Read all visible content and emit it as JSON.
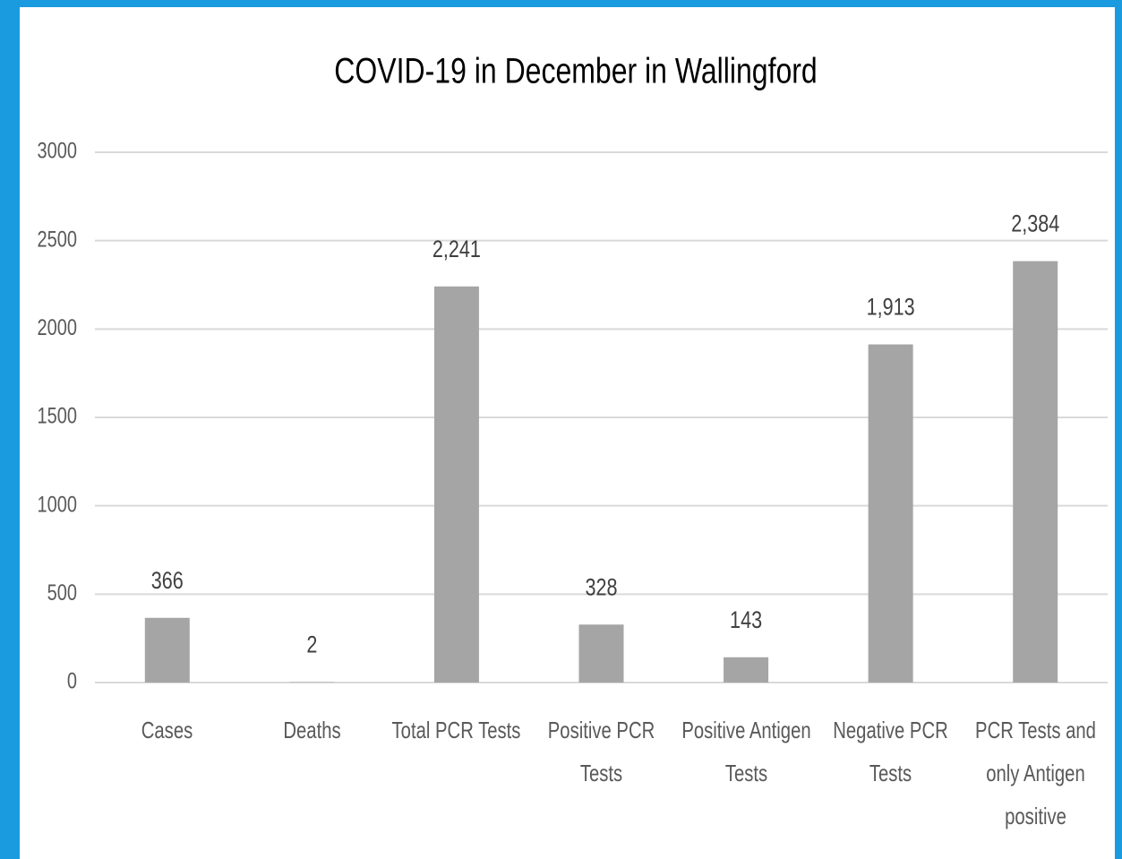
{
  "chart_data": {
    "type": "bar",
    "title": "COVID-19 in December in Wallingford",
    "categories": [
      "Cases",
      "Deaths",
      "Total PCR Tests",
      "Positive PCR Tests",
      "Positive Antigen Tests",
      "Negative PCR Tests",
      "PCR Tests and only Antigen positive"
    ],
    "values": [
      366,
      2,
      2241,
      328,
      143,
      1913,
      2384
    ],
    "value_labels": [
      "366",
      "2",
      "2,241",
      "328",
      "143",
      "1,913",
      "2,384"
    ],
    "color": "#a5a5a5",
    "ylim": [
      0,
      3000
    ],
    "yticks": [
      0,
      500,
      1000,
      1500,
      2000,
      2500,
      3000
    ],
    "grid": true
  }
}
